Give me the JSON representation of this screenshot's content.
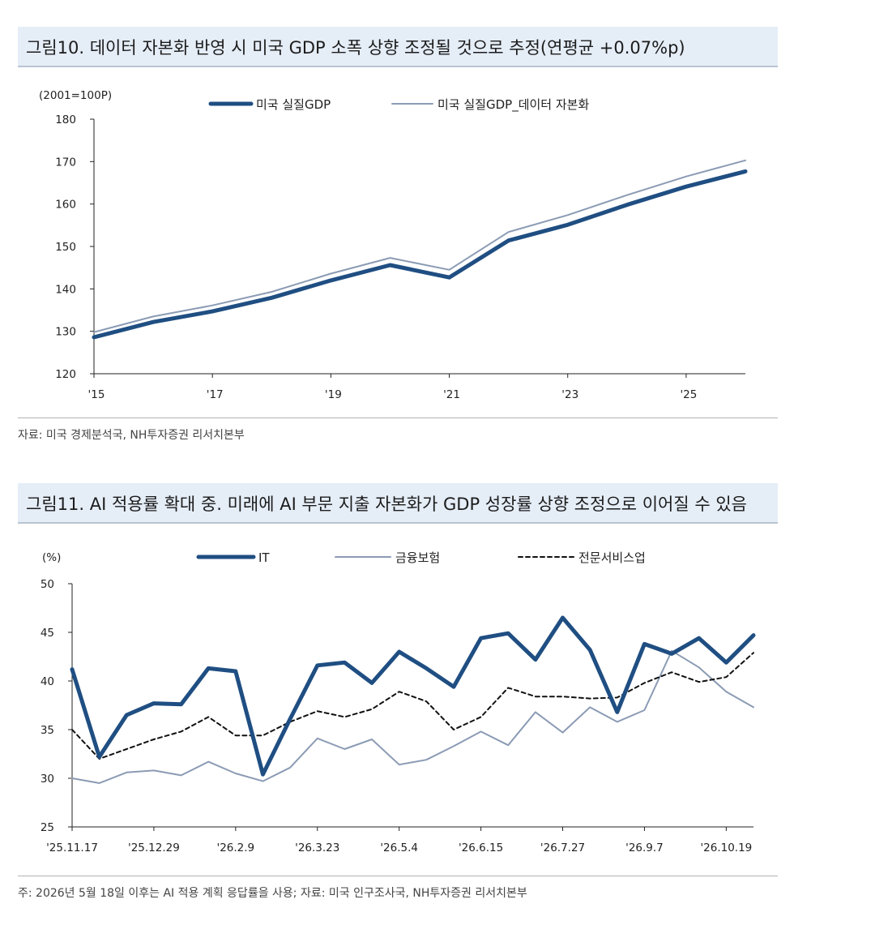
{
  "chart1": {
    "title": "그림10. 데이터 자본화 반영 시 미국 GDP 소폭 상향 조정될 것으로 추정(연평균 +0.07%p)",
    "source": "자료: 미국 경제분석국, NH투자증권 리서치본부",
    "colors": {
      "series1": "#1f4e82",
      "series2": "#8b9bb4"
    },
    "chart_data": {
      "type": "line",
      "unit": "(2001=100P)",
      "x_ticks": [
        "'15",
        "'17",
        "'19",
        "'21",
        "'23",
        "'25"
      ],
      "x": [
        2015,
        2016,
        2017,
        2018,
        2019,
        2020,
        2021,
        2022,
        2023,
        2024,
        2025,
        2026
      ],
      "xlim": [
        2015,
        2026
      ],
      "ylim": [
        120,
        180
      ],
      "y_ticks": [
        120,
        130,
        140,
        150,
        160,
        170,
        180
      ],
      "series": [
        {
          "name": "미국 실질GDP",
          "style": "thick",
          "values": [
            128.6,
            132.2,
            134.7,
            137.9,
            142.0,
            145.6,
            142.7,
            151.4,
            155.1,
            159.8,
            164.1,
            167.7
          ]
        },
        {
          "name": "미국 실질GDP_데이터 자본화",
          "style": "thin",
          "values": [
            129.8,
            133.5,
            136.1,
            139.3,
            143.6,
            147.3,
            144.5,
            153.4,
            157.4,
            162.1,
            166.5,
            170.3
          ]
        }
      ]
    }
  },
  "chart2": {
    "title": "그림11. AI 적용률 확대 중. 미래에 AI 부문 지출 자본화가 GDP 성장률 상향 조정으로 이어질 수 있음",
    "source": "주: 2026년 5월 18일 이후는 AI 적용 계획 응답률을 사용; 자료: 미국 인구조사국, NH투자증권 리서치본부",
    "colors": {
      "series1": "#1f4e82",
      "series2": "#8b9bb4",
      "series3": "#111111"
    },
    "chart_data": {
      "type": "line",
      "unit": "(%)",
      "x_ticks": [
        {
          "label": "'25.11.17",
          "index": 0
        },
        {
          "label": "'25.12.29",
          "index": 3
        },
        {
          "label": "'26.2.9",
          "index": 6
        },
        {
          "label": "'26.3.23",
          "index": 9
        },
        {
          "label": "'26.5.4",
          "index": 12
        },
        {
          "label": "'26.6.15",
          "index": 15
        },
        {
          "label": "'26.7.27",
          "index": 18
        },
        {
          "label": "'26.9.7",
          "index": 21
        },
        {
          "label": "'26.10.19",
          "index": 24
        }
      ],
      "points": 26,
      "ylim": [
        25,
        50
      ],
      "y_ticks": [
        25,
        30,
        35,
        40,
        45,
        50
      ],
      "series": [
        {
          "name": "IT",
          "style": "thick",
          "values": [
            41.2,
            32.2,
            36.5,
            37.7,
            37.6,
            41.3,
            41.0,
            30.4,
            36.1,
            41.6,
            41.9,
            39.8,
            43.0,
            41.3,
            39.4,
            44.4,
            44.9,
            42.2,
            46.5,
            43.2,
            36.8,
            43.8,
            42.8,
            44.4,
            41.9,
            44.7
          ]
        },
        {
          "name": "금융보험",
          "style": "thin",
          "values": [
            30.0,
            29.5,
            30.6,
            30.8,
            30.3,
            31.7,
            30.5,
            29.7,
            31.1,
            34.1,
            33.0,
            34.0,
            31.4,
            31.9,
            33.3,
            34.8,
            33.4,
            36.8,
            34.7,
            37.3,
            35.8,
            37.0,
            43.1,
            41.4,
            38.9,
            37.3
          ]
        },
        {
          "name": "전문서비스업",
          "style": "dashed",
          "values": [
            35.0,
            32.0,
            33.0,
            34.0,
            34.8,
            36.3,
            34.4,
            34.4,
            35.8,
            36.9,
            36.3,
            37.1,
            38.9,
            37.9,
            35.0,
            36.3,
            39.3,
            38.4,
            38.4,
            38.2,
            38.3,
            39.8,
            40.9,
            39.9,
            40.4,
            42.9
          ]
        }
      ]
    }
  }
}
